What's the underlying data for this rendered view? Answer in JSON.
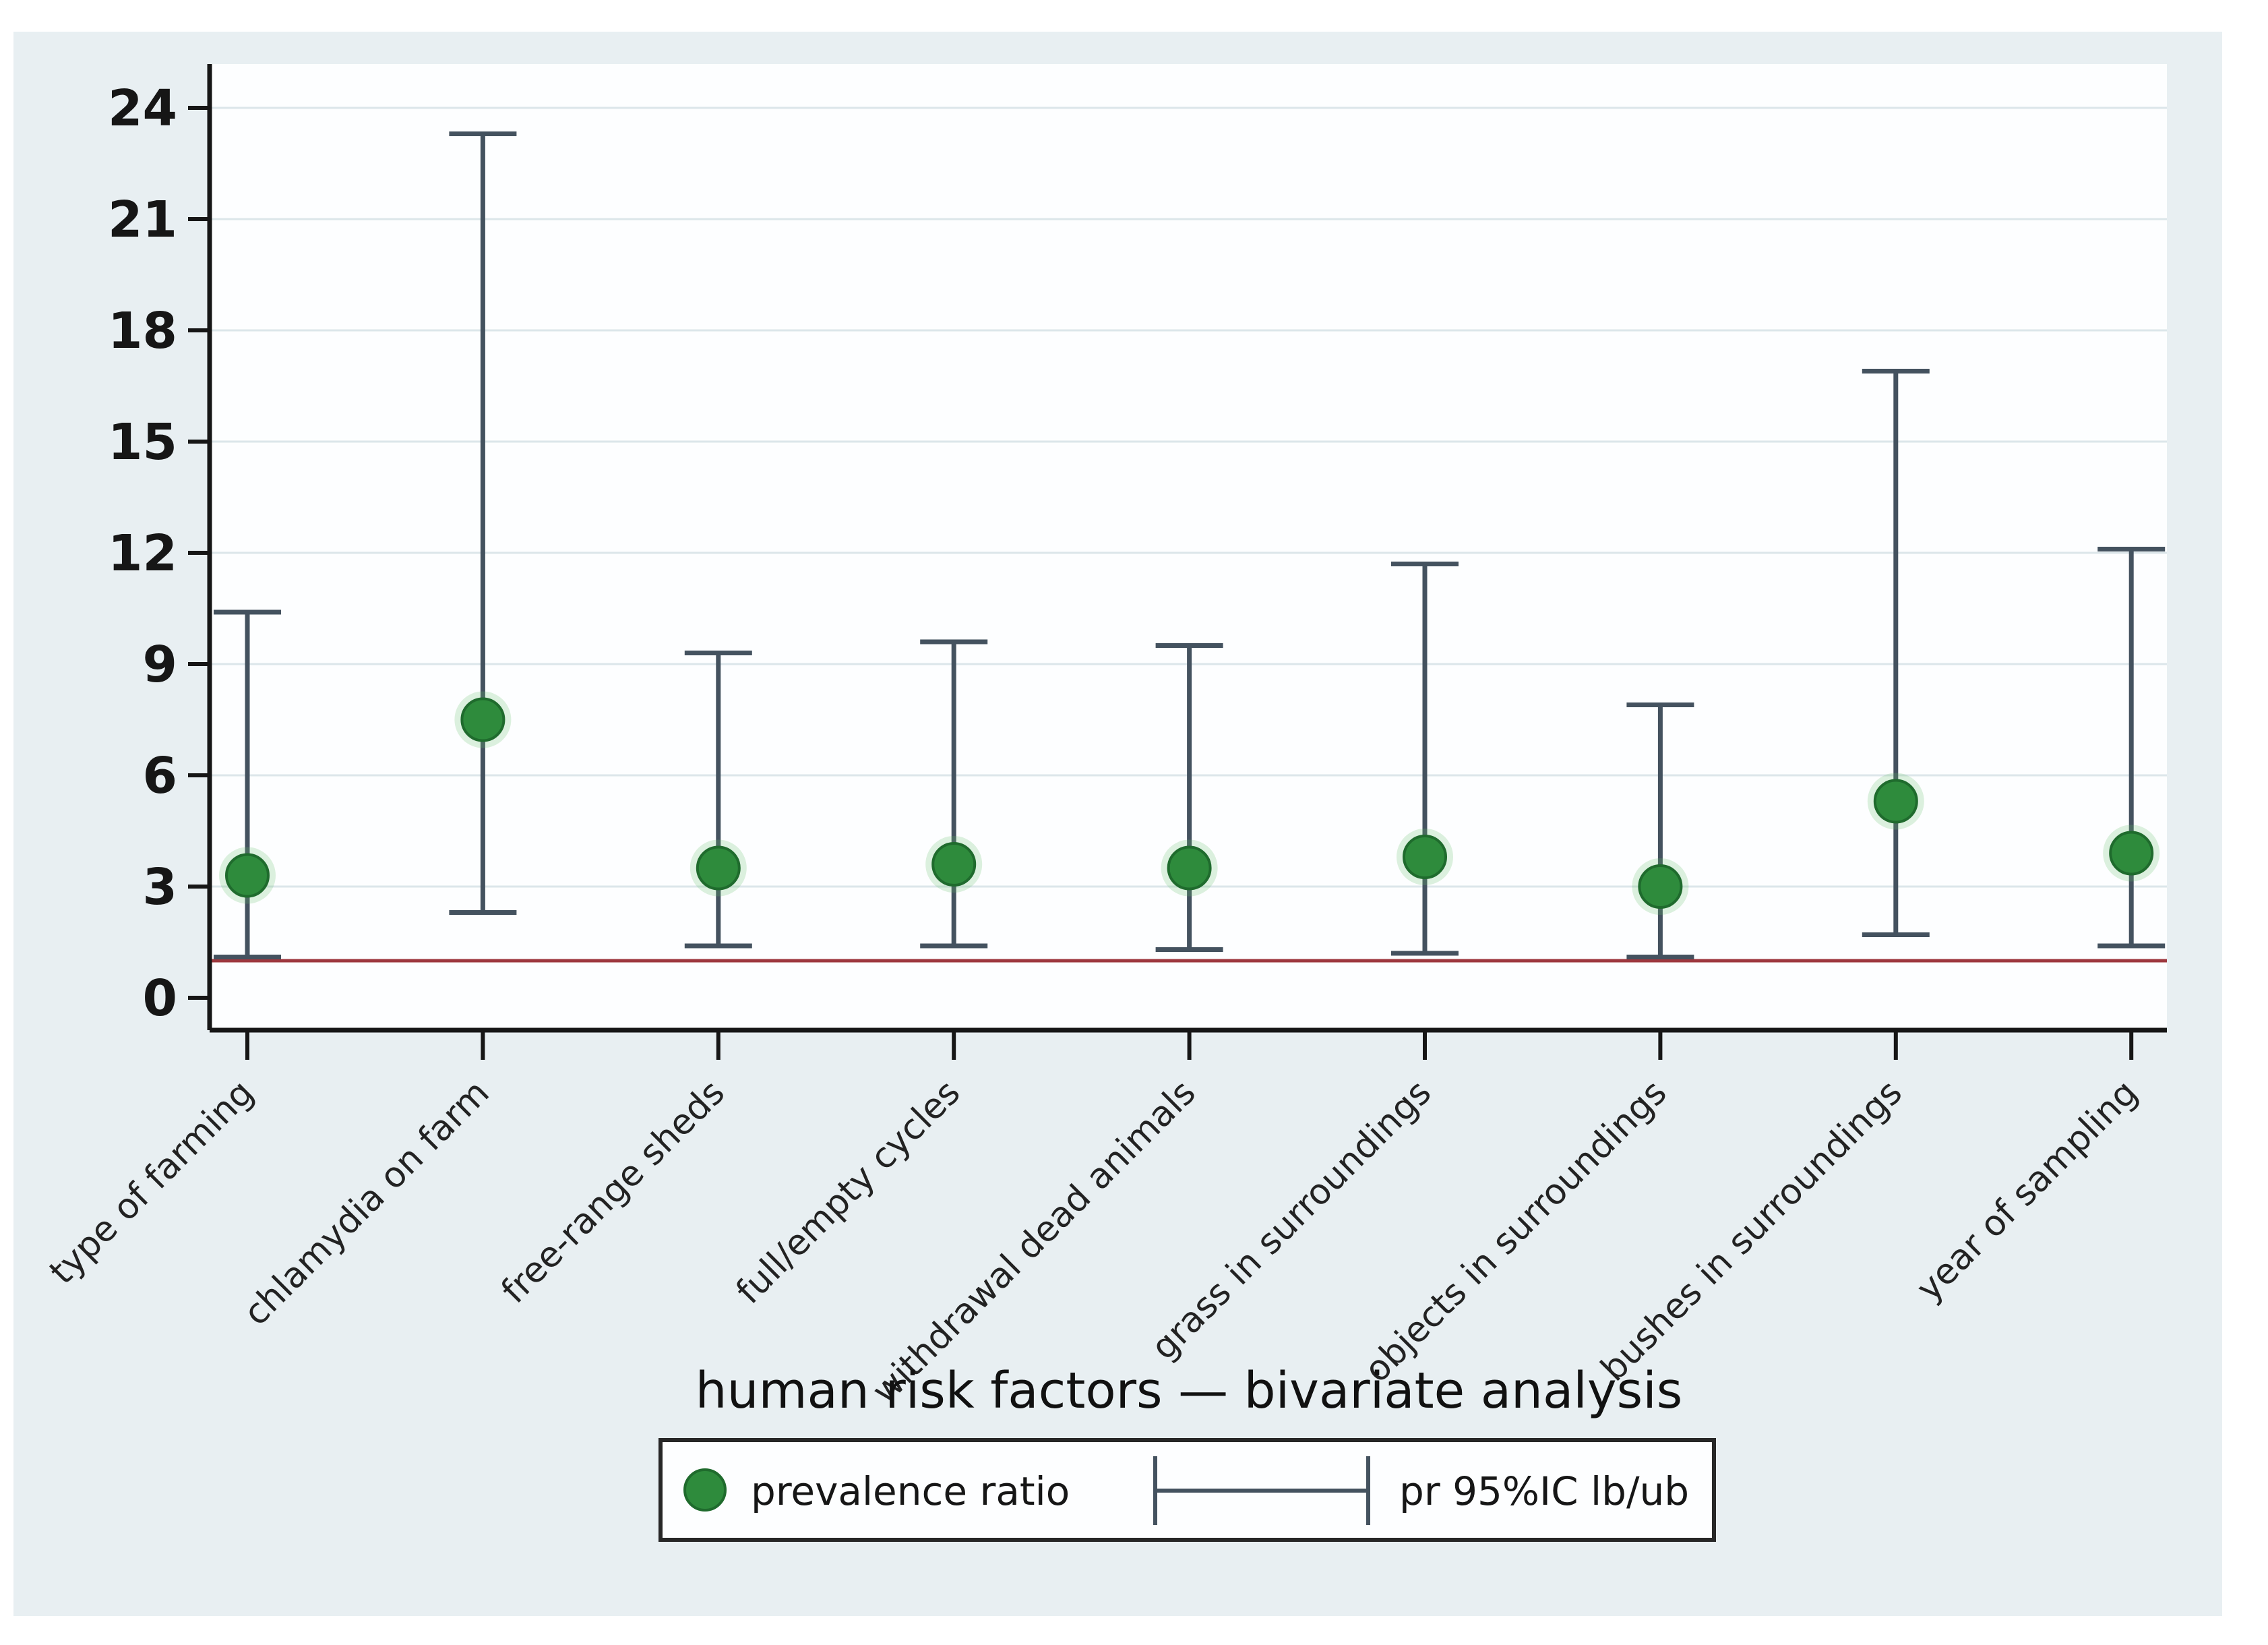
{
  "figure": {
    "page_background": "#ffffff",
    "graph_background": "#e8eff2",
    "plot_background": "#fdfeff"
  },
  "chart_data": {
    "type": "scatter",
    "title": "human risk factors —  bivariate analysis",
    "xlabel": "",
    "ylabel": "",
    "categories": [
      "type of farming",
      "chlamydia on farm",
      "free-range sheds",
      "full/empty cycles",
      "withdrawal dead animals",
      "grass in surroundings",
      "objects in surroundings",
      "bushes in surroundings",
      "year of sampling"
    ],
    "series": [
      {
        "name": "prevalence ratio",
        "values": [
          3.3,
          7.5,
          3.5,
          3.6,
          3.5,
          3.8,
          3.0,
          5.3,
          3.9
        ]
      },
      {
        "name": "pr 95%IC lower bound",
        "values": [
          1.1,
          2.3,
          1.4,
          1.4,
          1.3,
          1.2,
          1.1,
          1.7,
          1.4
        ]
      },
      {
        "name": "pr 95%IC upper bound",
        "values": [
          10.4,
          23.3,
          9.3,
          9.6,
          9.5,
          11.7,
          7.9,
          16.9,
          12.1
        ]
      }
    ],
    "reference_line_y": 1.0,
    "y_ticks": [
      0,
      3,
      6,
      9,
      12,
      15,
      18,
      21,
      24
    ],
    "ylim": [
      0,
      25.2
    ],
    "grid": true,
    "legend_position": "bottom-center"
  },
  "legend": {
    "marker_label": "prevalence ratio",
    "ci_label": "pr 95%IC lb/ub"
  },
  "colors": {
    "dot_fill": "#2e8b3c",
    "dot_edge": "#1f6b2d",
    "dot_halo": "#63c06a",
    "whisker": "#44525f",
    "reference_line": "#9e383e",
    "gridline": "#dce6ea",
    "axis": "#161616",
    "tick_label": "#161616",
    "category_label": "#222222",
    "title_text": "#111111",
    "legend_border": "#272727",
    "legend_background": "#fdfeff"
  }
}
